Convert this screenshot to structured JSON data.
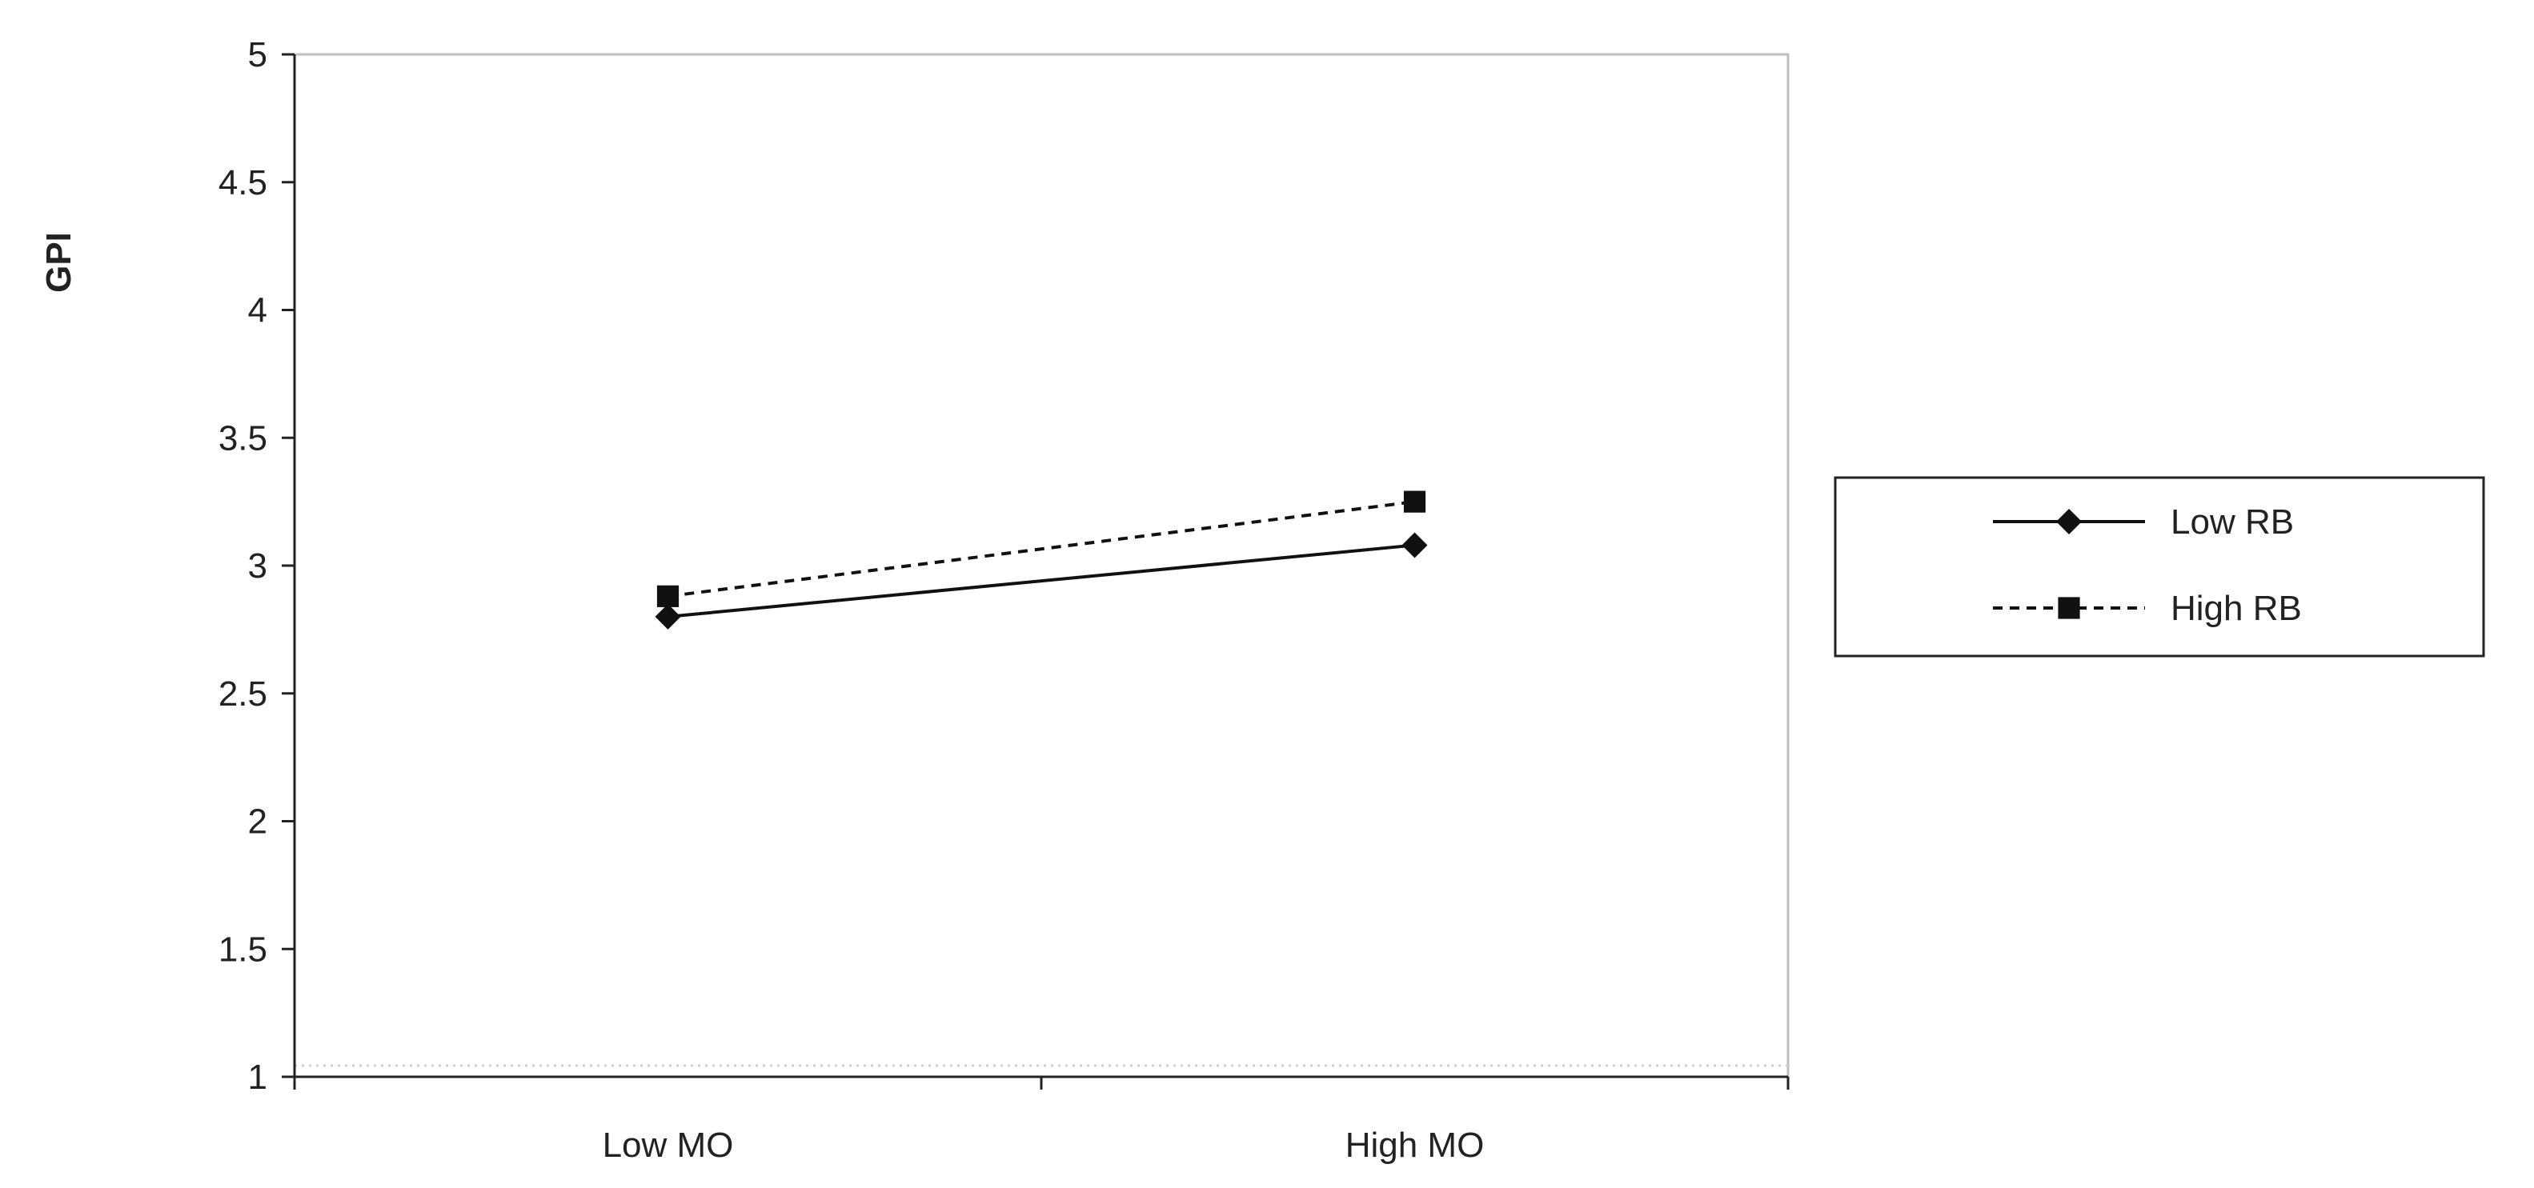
{
  "chart_data": {
    "type": "line",
    "categories": [
      "Low MO",
      "High MO"
    ],
    "series": [
      {
        "name": "Low RB",
        "values": [
          2.8,
          3.08
        ],
        "line": "solid",
        "marker": "diamond",
        "color": "#111111"
      },
      {
        "name": "High RB",
        "values": [
          2.88,
          3.25
        ],
        "line": "dashed",
        "marker": "square",
        "color": "#111111"
      }
    ],
    "title": "",
    "xlabel": "",
    "ylabel": "GPI",
    "ylim": [
      1,
      5
    ],
    "yticks": [
      1,
      1.5,
      2,
      2.5,
      3,
      3.5,
      4,
      4.5,
      5
    ],
    "ytick_labels": [
      "1",
      "1.5",
      "2",
      "2.5",
      "3",
      "3.5",
      "4",
      "4.5",
      "5"
    ],
    "grid": false,
    "legend": {
      "position": "right"
    }
  }
}
